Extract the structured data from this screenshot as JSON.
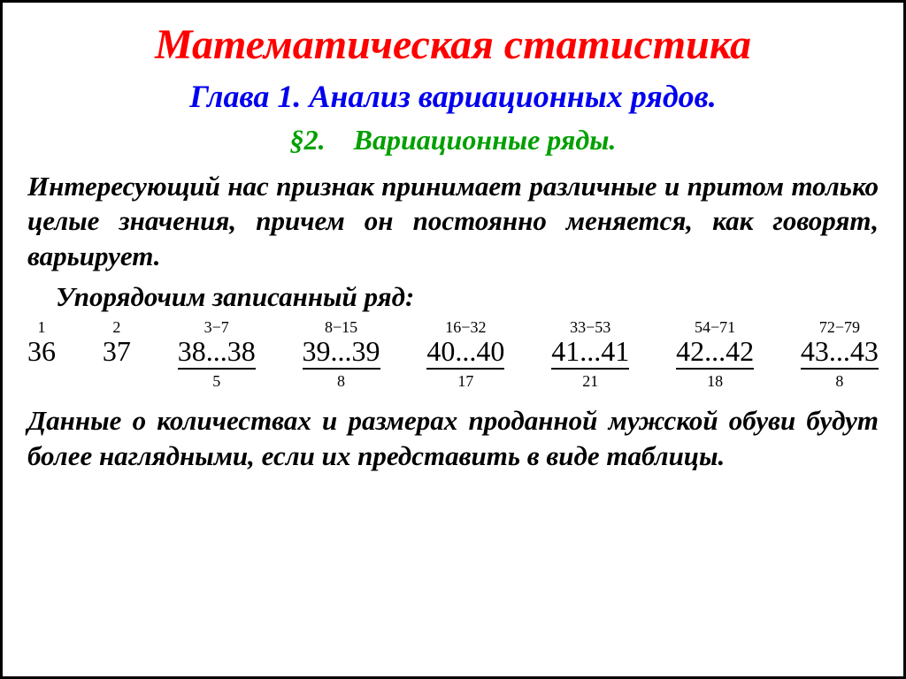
{
  "title": "Математическая статистика",
  "chapter": "Глава 1. Анализ вариационных рядов.",
  "section": "§2. Вариационные ряды.",
  "para1": "Интересующий нас признак принимает различные и притом только целые значения, причем он постоянно меняется, как говорят, варьирует.",
  "para2": "Упорядочим записанный ряд:",
  "groups": [
    {
      "sup": "1",
      "val": "36",
      "sub": "",
      "underline": false
    },
    {
      "sup": "2",
      "val": "37",
      "sub": "",
      "underline": false
    },
    {
      "sup": "3−7",
      "val": "38...38",
      "sub": "5",
      "underline": true
    },
    {
      "sup": "8−15",
      "val": "39...39",
      "sub": "8",
      "underline": true
    },
    {
      "sup": "16−32",
      "val": "40...40",
      "sub": "17",
      "underline": true
    },
    {
      "sup": "33−53",
      "val": "41...41",
      "sub": "21",
      "underline": true
    },
    {
      "sup": "54−71",
      "val": "42...42",
      "sub": "18",
      "underline": true
    },
    {
      "sup": "72−79",
      "val": "43...43",
      "sub": "8",
      "underline": true
    }
  ],
  "para3": "Данные о количествах и размерах проданной мужской обуви будут более наглядными, если их представить в виде таблицы.",
  "colors": {
    "title": "#ff0000",
    "chapter": "#0000ee",
    "section": "#00a000",
    "text": "#000000",
    "bg": "#ffffff",
    "border": "#000000"
  }
}
